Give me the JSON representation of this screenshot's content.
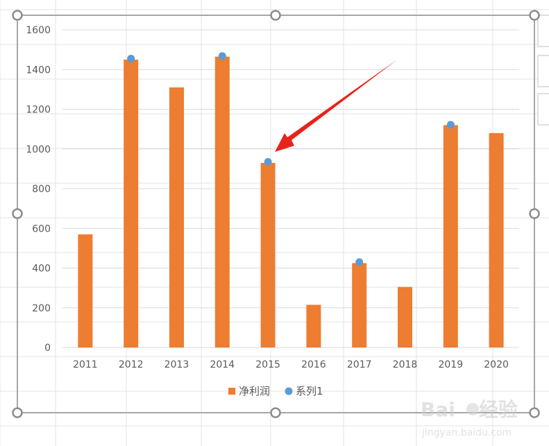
{
  "chart_data": {
    "type": "bar",
    "categories": [
      "2011",
      "2012",
      "2013",
      "2014",
      "2015",
      "2016",
      "2017",
      "2018",
      "2019",
      "2020"
    ],
    "series": [
      {
        "name": "净利润",
        "kind": "bar",
        "color": "#ED7D31",
        "values": [
          570,
          1450,
          1310,
          1465,
          930,
          215,
          425,
          305,
          1120,
          1080
        ]
      },
      {
        "name": "系列1",
        "kind": "scatter",
        "color": "#5B9BD5",
        "values": [
          null,
          1455,
          null,
          1468,
          935,
          null,
          430,
          null,
          1122,
          null
        ]
      }
    ],
    "ylim": [
      0,
      1600
    ],
    "y_ticks": [
      "0",
      "200",
      "400",
      "600",
      "800",
      "1000",
      "1200",
      "1400",
      "1600"
    ],
    "grid": true,
    "legend_position": "bottom",
    "annotation": {
      "type": "arrow",
      "color": "#E8231A",
      "points_to": "2015"
    }
  },
  "watermark": {
    "brand": "Bai",
    "brand_suffix": "经验",
    "url": "jingyan.baidu.com"
  }
}
